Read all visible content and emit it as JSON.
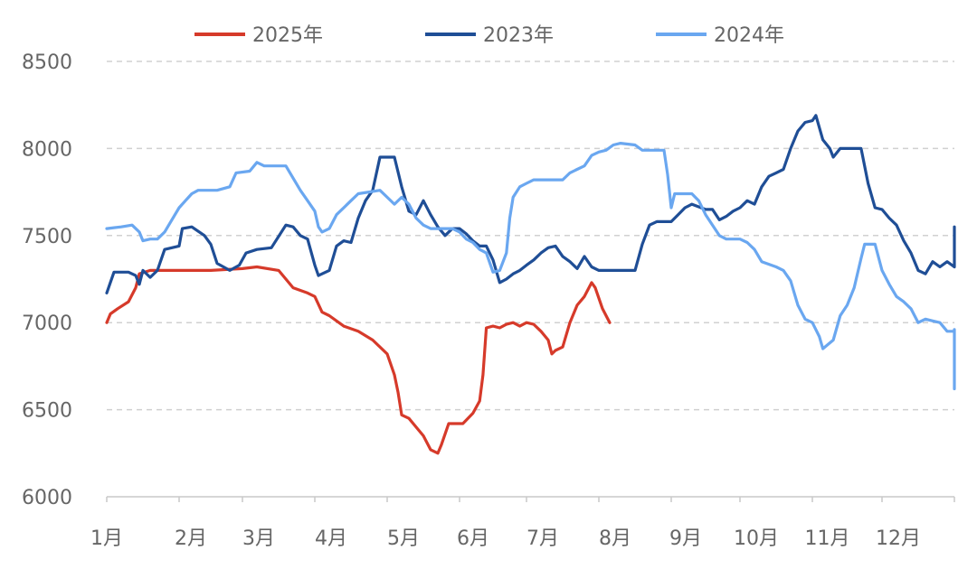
{
  "chart_data": {
    "type": "line",
    "ylim": [
      6000,
      8500
    ],
    "yticks": [
      "8500",
      "8000",
      "7500",
      "7000",
      "6500",
      "6000"
    ],
    "categories": [
      "1月",
      "2月",
      "3月",
      "4月",
      "5月",
      "6月",
      "7月",
      "8月",
      "9月",
      "10月",
      "11月",
      "12月"
    ],
    "grid": true,
    "legend_position": "top-center",
    "series": [
      {
        "name": "2025年",
        "color": "#d63a2a",
        "points": [
          [
            0,
            7000
          ],
          [
            0.05,
            7050
          ],
          [
            0.15,
            7080
          ],
          [
            0.3,
            7120
          ],
          [
            0.4,
            7200
          ],
          [
            0.45,
            7280
          ],
          [
            0.6,
            7300
          ],
          [
            1.0,
            7300
          ],
          [
            1.5,
            7300
          ],
          [
            2.0,
            7310
          ],
          [
            2.2,
            7320
          ],
          [
            2.5,
            7300
          ],
          [
            2.6,
            7250
          ],
          [
            2.7,
            7200
          ],
          [
            2.9,
            7170
          ],
          [
            3.0,
            7150
          ],
          [
            3.1,
            7060
          ],
          [
            3.2,
            7040
          ],
          [
            3.4,
            6980
          ],
          [
            3.6,
            6950
          ],
          [
            3.8,
            6900
          ],
          [
            4.0,
            6820
          ],
          [
            4.1,
            6700
          ],
          [
            4.15,
            6600
          ],
          [
            4.2,
            6470
          ],
          [
            4.3,
            6450
          ],
          [
            4.4,
            6400
          ],
          [
            4.5,
            6350
          ],
          [
            4.6,
            6270
          ],
          [
            4.7,
            6250
          ],
          [
            4.75,
            6300
          ],
          [
            4.85,
            6420
          ],
          [
            5.05,
            6420
          ],
          [
            5.2,
            6480
          ],
          [
            5.3,
            6550
          ],
          [
            5.35,
            6700
          ],
          [
            5.4,
            6970
          ],
          [
            5.5,
            6980
          ],
          [
            5.6,
            6970
          ],
          [
            5.7,
            6990
          ],
          [
            5.8,
            7000
          ],
          [
            5.9,
            6980
          ],
          [
            6.0,
            7000
          ],
          [
            6.1,
            6990
          ],
          [
            6.2,
            6950
          ],
          [
            6.3,
            6900
          ],
          [
            6.35,
            6820
          ],
          [
            6.4,
            6840
          ],
          [
            6.5,
            6860
          ],
          [
            6.6,
            7000
          ],
          [
            6.7,
            7100
          ],
          [
            6.8,
            7150
          ],
          [
            6.9,
            7230
          ],
          [
            6.95,
            7200
          ],
          [
            7.05,
            7080
          ],
          [
            7.15,
            7000
          ]
        ]
      },
      {
        "name": "2023年",
        "color": "#1f4e96",
        "points": [
          [
            0,
            7170
          ],
          [
            0.1,
            7290
          ],
          [
            0.3,
            7290
          ],
          [
            0.4,
            7270
          ],
          [
            0.45,
            7220
          ],
          [
            0.5,
            7300
          ],
          [
            0.6,
            7260
          ],
          [
            0.7,
            7300
          ],
          [
            0.8,
            7420
          ],
          [
            1.0,
            7440
          ],
          [
            1.05,
            7540
          ],
          [
            1.2,
            7550
          ],
          [
            1.4,
            7500
          ],
          [
            1.5,
            7450
          ],
          [
            1.6,
            7340
          ],
          [
            1.8,
            7300
          ],
          [
            1.95,
            7330
          ],
          [
            2.05,
            7400
          ],
          [
            2.2,
            7420
          ],
          [
            2.4,
            7430
          ],
          [
            2.6,
            7560
          ],
          [
            2.7,
            7550
          ],
          [
            2.8,
            7500
          ],
          [
            2.9,
            7480
          ],
          [
            3.0,
            7330
          ],
          [
            3.05,
            7270
          ],
          [
            3.2,
            7300
          ],
          [
            3.3,
            7440
          ],
          [
            3.4,
            7470
          ],
          [
            3.5,
            7460
          ],
          [
            3.6,
            7600
          ],
          [
            3.7,
            7700
          ],
          [
            3.8,
            7760
          ],
          [
            3.9,
            7950
          ],
          [
            4.1,
            7950
          ],
          [
            4.2,
            7780
          ],
          [
            4.3,
            7640
          ],
          [
            4.4,
            7620
          ],
          [
            4.5,
            7700
          ],
          [
            4.6,
            7620
          ],
          [
            4.7,
            7550
          ],
          [
            4.8,
            7500
          ],
          [
            4.9,
            7540
          ],
          [
            5.0,
            7540
          ],
          [
            5.1,
            7510
          ],
          [
            5.2,
            7470
          ],
          [
            5.3,
            7440
          ],
          [
            5.4,
            7440
          ],
          [
            5.5,
            7360
          ],
          [
            5.6,
            7230
          ],
          [
            5.7,
            7250
          ],
          [
            5.8,
            7280
          ],
          [
            5.9,
            7300
          ],
          [
            6.0,
            7330
          ],
          [
            6.1,
            7360
          ],
          [
            6.2,
            7400
          ],
          [
            6.3,
            7430
          ],
          [
            6.4,
            7440
          ],
          [
            6.5,
            7380
          ],
          [
            6.6,
            7350
          ],
          [
            6.7,
            7310
          ],
          [
            6.8,
            7380
          ],
          [
            6.9,
            7320
          ],
          [
            7.0,
            7300
          ],
          [
            7.5,
            7300
          ],
          [
            7.6,
            7450
          ],
          [
            7.7,
            7560
          ],
          [
            7.8,
            7580
          ],
          [
            8.0,
            7580
          ],
          [
            8.1,
            7620
          ],
          [
            8.2,
            7660
          ],
          [
            8.3,
            7680
          ],
          [
            8.5,
            7650
          ],
          [
            8.6,
            7650
          ],
          [
            8.7,
            7590
          ],
          [
            8.8,
            7610
          ],
          [
            8.9,
            7640
          ],
          [
            9.0,
            7660
          ],
          [
            9.1,
            7700
          ],
          [
            9.2,
            7680
          ],
          [
            9.3,
            7780
          ],
          [
            9.4,
            7840
          ],
          [
            9.5,
            7860
          ],
          [
            9.6,
            7880
          ],
          [
            9.7,
            8000
          ],
          [
            9.8,
            8100
          ],
          [
            9.9,
            8150
          ],
          [
            10.0,
            8160
          ],
          [
            10.05,
            8190
          ],
          [
            10.15,
            8050
          ],
          [
            10.25,
            8000
          ],
          [
            10.3,
            7950
          ],
          [
            10.4,
            8000
          ],
          [
            10.7,
            8000
          ],
          [
            10.8,
            7800
          ],
          [
            10.9,
            7660
          ],
          [
            11.0,
            7650
          ],
          [
            11.1,
            7600
          ],
          [
            11.2,
            7560
          ],
          [
            11.3,
            7470
          ],
          [
            11.4,
            7400
          ],
          [
            11.5,
            7300
          ],
          [
            11.6,
            7280
          ],
          [
            11.7,
            7350
          ],
          [
            11.8,
            7320
          ],
          [
            11.9,
            7350
          ],
          [
            12.0,
            7320
          ],
          [
            12.1,
            7360
          ],
          [
            12.2,
            7440
          ],
          [
            12.3,
            7460
          ],
          [
            12.4,
            7470
          ],
          [
            12.7,
            7470
          ],
          [
            12.8,
            7390
          ],
          [
            12.9,
            7380
          ],
          [
            13.0,
            7340
          ],
          [
            13.1,
            7320
          ],
          [
            13.2,
            7380
          ],
          [
            13.3,
            7440
          ],
          [
            13.4,
            7480
          ],
          [
            13.5,
            7520
          ],
          [
            13.6,
            7550
          ],
          [
            13.7,
            7550
          ]
        ]
      },
      {
        "name": "2024年",
        "color": "#6aa7f0",
        "points": [
          [
            0,
            7540
          ],
          [
            0.2,
            7550
          ],
          [
            0.35,
            7560
          ],
          [
            0.45,
            7520
          ],
          [
            0.5,
            7470
          ],
          [
            0.6,
            7480
          ],
          [
            0.7,
            7480
          ],
          [
            0.8,
            7520
          ],
          [
            0.9,
            7590
          ],
          [
            1.0,
            7660
          ],
          [
            1.1,
            7700
          ],
          [
            1.2,
            7740
          ],
          [
            1.3,
            7760
          ],
          [
            1.6,
            7760
          ],
          [
            1.8,
            7780
          ],
          [
            1.9,
            7860
          ],
          [
            2.1,
            7870
          ],
          [
            2.2,
            7920
          ],
          [
            2.3,
            7900
          ],
          [
            2.6,
            7900
          ],
          [
            2.7,
            7830
          ],
          [
            2.8,
            7760
          ],
          [
            2.9,
            7700
          ],
          [
            3.0,
            7640
          ],
          [
            3.05,
            7550
          ],
          [
            3.1,
            7520
          ],
          [
            3.2,
            7540
          ],
          [
            3.3,
            7620
          ],
          [
            3.4,
            7660
          ],
          [
            3.5,
            7700
          ],
          [
            3.6,
            7740
          ],
          [
            3.9,
            7760
          ],
          [
            4.0,
            7720
          ],
          [
            4.1,
            7680
          ],
          [
            4.2,
            7720
          ],
          [
            4.3,
            7680
          ],
          [
            4.4,
            7600
          ],
          [
            4.5,
            7560
          ],
          [
            4.6,
            7540
          ],
          [
            4.9,
            7540
          ],
          [
            5.0,
            7520
          ],
          [
            5.1,
            7480
          ],
          [
            5.2,
            7460
          ],
          [
            5.3,
            7420
          ],
          [
            5.4,
            7400
          ],
          [
            5.5,
            7290
          ],
          [
            5.6,
            7300
          ],
          [
            5.7,
            7400
          ],
          [
            5.75,
            7600
          ],
          [
            5.8,
            7720
          ],
          [
            5.9,
            7780
          ],
          [
            6.0,
            7800
          ],
          [
            6.1,
            7820
          ],
          [
            6.5,
            7820
          ],
          [
            6.6,
            7860
          ],
          [
            6.7,
            7880
          ],
          [
            6.8,
            7900
          ],
          [
            6.9,
            7960
          ],
          [
            7.0,
            7980
          ],
          [
            7.1,
            7990
          ],
          [
            7.2,
            8020
          ],
          [
            7.3,
            8030
          ],
          [
            7.5,
            8020
          ],
          [
            7.6,
            7990
          ],
          [
            7.9,
            7990
          ],
          [
            7.95,
            7850
          ],
          [
            8.0,
            7660
          ],
          [
            8.05,
            7740
          ],
          [
            8.3,
            7740
          ],
          [
            8.4,
            7700
          ],
          [
            8.5,
            7620
          ],
          [
            8.6,
            7560
          ],
          [
            8.7,
            7500
          ],
          [
            8.8,
            7480
          ],
          [
            9.0,
            7480
          ],
          [
            9.1,
            7460
          ],
          [
            9.2,
            7420
          ],
          [
            9.3,
            7350
          ],
          [
            9.5,
            7320
          ],
          [
            9.6,
            7300
          ],
          [
            9.7,
            7240
          ],
          [
            9.8,
            7100
          ],
          [
            9.9,
            7020
          ],
          [
            10.0,
            7000
          ],
          [
            10.1,
            6920
          ],
          [
            10.15,
            6850
          ],
          [
            10.3,
            6900
          ],
          [
            10.4,
            7040
          ],
          [
            10.5,
            7100
          ],
          [
            10.6,
            7200
          ],
          [
            10.7,
            7370
          ],
          [
            10.75,
            7450
          ],
          [
            10.9,
            7450
          ],
          [
            11.0,
            7300
          ],
          [
            11.1,
            7220
          ],
          [
            11.2,
            7150
          ],
          [
            11.3,
            7120
          ],
          [
            11.4,
            7080
          ],
          [
            11.5,
            7000
          ],
          [
            11.6,
            7020
          ],
          [
            11.7,
            7010
          ],
          [
            11.8,
            7000
          ],
          [
            11.9,
            6950
          ],
          [
            12.0,
            6950
          ],
          [
            12.1,
            6900
          ],
          [
            12.15,
            6820
          ],
          [
            12.2,
            6880
          ],
          [
            12.3,
            6860
          ],
          [
            12.4,
            6800
          ],
          [
            12.5,
            6620
          ],
          [
            12.6,
            6650
          ],
          [
            12.7,
            6680
          ],
          [
            12.8,
            6680
          ],
          [
            12.9,
            6720
          ],
          [
            13.0,
            6760
          ],
          [
            13.1,
            6800
          ],
          [
            13.2,
            6880
          ],
          [
            13.3,
            6920
          ],
          [
            13.4,
            6930
          ],
          [
            13.6,
            6940
          ],
          [
            13.7,
            6960
          ]
        ]
      }
    ],
    "legend_order": [
      0,
      1,
      2
    ]
  }
}
